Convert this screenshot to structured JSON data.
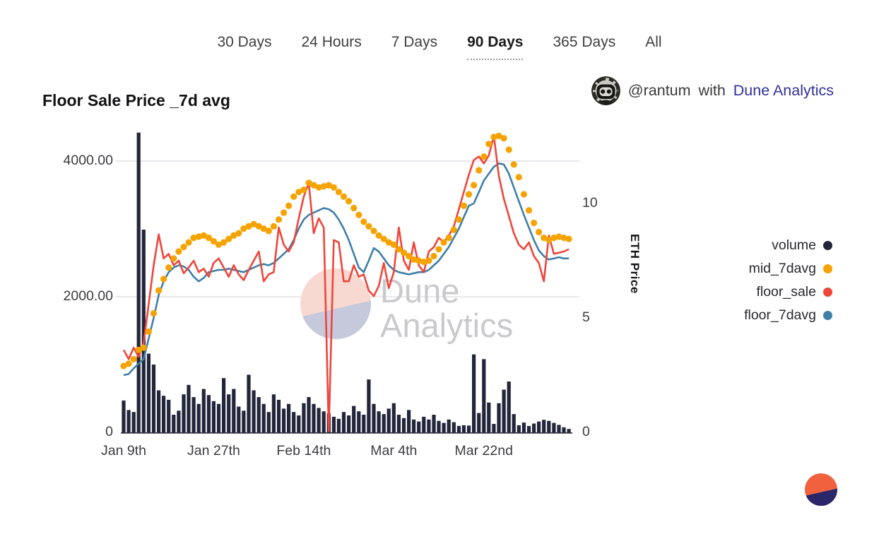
{
  "tabs": {
    "items": [
      {
        "label": "30 Days",
        "active": false
      },
      {
        "label": "24 Hours",
        "active": false
      },
      {
        "label": "7 Days",
        "active": false
      },
      {
        "label": "90 Days",
        "active": true
      },
      {
        "label": "365 Days",
        "active": false
      },
      {
        "label": "All",
        "active": false
      }
    ]
  },
  "header": {
    "title": "Floor Sale Price _7d avg",
    "author_handle": "@rantum",
    "connector": "with",
    "brand": "Dune Analytics"
  },
  "watermark": {
    "line1": "Dune",
    "line2": "Analytics"
  },
  "chart_data": {
    "type": "composed",
    "title": "Floor Sale Price _7d avg",
    "x_axis": {
      "labels": [
        "Jan 9th",
        "Jan 27th",
        "Feb 14th",
        "Mar 4th",
        "Mar 22nd"
      ],
      "label_day_index": [
        0,
        18,
        36,
        54,
        72
      ],
      "days_total": 90
    },
    "left_axis": {
      "ticks": [
        "4000.00",
        "2000.00",
        "0"
      ],
      "tick_values": [
        4000,
        2000,
        0
      ],
      "max": 4500
    },
    "right_axis": {
      "title": "ETH Price",
      "ticks": [
        "10",
        "5",
        "0"
      ],
      "tick_values": [
        10,
        5,
        0
      ],
      "max": 13.2
    },
    "grid": "horizontal-only",
    "legend_position": "right-outside",
    "series": [
      {
        "name": "volume",
        "type": "bar",
        "axis": "left",
        "color": "#23253a",
        "values": [
          470,
          330,
          300,
          4420,
          2990,
          1160,
          1000,
          620,
          540,
          480,
          260,
          320,
          560,
          700,
          520,
          420,
          640,
          550,
          460,
          420,
          800,
          560,
          640,
          380,
          320,
          850,
          620,
          520,
          420,
          300,
          560,
          480,
          350,
          420,
          300,
          250,
          430,
          520,
          420,
          360,
          310,
          280,
          230,
          200,
          300,
          250,
          390,
          310,
          260,
          780,
          420,
          310,
          270,
          350,
          430,
          260,
          210,
          330,
          190,
          160,
          230,
          190,
          260,
          170,
          140,
          190,
          150,
          95,
          105,
          100,
          1150,
          285,
          1080,
          440,
          125,
          430,
          630,
          750,
          270,
          105,
          145,
          95,
          130,
          160,
          185,
          170,
          140,
          110,
          75,
          50
        ]
      },
      {
        "name": "mid_7davg",
        "type": "dotted-line",
        "axis": "right",
        "color": "#F5A300",
        "values": [
          2.9,
          3.0,
          3.2,
          3.6,
          3.7,
          4.4,
          5.2,
          6.2,
          6.7,
          7.2,
          7.6,
          7.9,
          8.1,
          8.3,
          8.5,
          8.55,
          8.6,
          8.5,
          8.35,
          8.2,
          8.3,
          8.45,
          8.6,
          8.7,
          8.9,
          9.0,
          9.1,
          9.0,
          8.9,
          8.8,
          9.0,
          9.3,
          9.6,
          9.9,
          10.3,
          10.5,
          10.6,
          10.9,
          10.8,
          10.7,
          10.75,
          10.8,
          10.7,
          10.5,
          10.3,
          10.1,
          9.8,
          9.5,
          9.2,
          9.0,
          8.8,
          8.6,
          8.45,
          8.3,
          8.2,
          8.0,
          7.85,
          7.7,
          7.55,
          7.5,
          7.45,
          7.5,
          7.7,
          8.0,
          8.3,
          8.5,
          8.85,
          9.3,
          9.9,
          10.4,
          10.8,
          11.45,
          12.05,
          12.6,
          12.9,
          12.95,
          12.85,
          12.35,
          11.7,
          11.15,
          10.4,
          9.7,
          9.15,
          8.75,
          8.5,
          8.4,
          8.5,
          8.55,
          8.5,
          8.45
        ]
      },
      {
        "name": "floor_sale",
        "type": "line",
        "axis": "right",
        "color": "#EF453B",
        "values": [
          3.6,
          3.2,
          3.7,
          3.3,
          3.9,
          5.6,
          7.3,
          8.65,
          7.6,
          7.8,
          7.3,
          7.5,
          6.95,
          7.2,
          7.5,
          7.0,
          7.15,
          6.8,
          7.4,
          7.6,
          7.2,
          6.8,
          7.3,
          6.9,
          6.65,
          7.1,
          7.5,
          7.9,
          6.6,
          6.9,
          7.0,
          8.95,
          8.2,
          7.9,
          8.3,
          9.35,
          10.3,
          10.9,
          8.7,
          9.35,
          8.95,
          0.05,
          8.4,
          8.3,
          6.6,
          6.6,
          7.3,
          6.8,
          6.9,
          6.2,
          5.95,
          6.4,
          7.4,
          6.3,
          7.0,
          8.95,
          7.5,
          7.1,
          8.3,
          7.3,
          7.0,
          7.9,
          8.1,
          8.5,
          8.3,
          8.6,
          9.0,
          9.75,
          10.5,
          11.25,
          11.9,
          12.05,
          11.75,
          12.1,
          12.95,
          11.2,
          10.2,
          9.45,
          8.7,
          8.2,
          8.0,
          8.3,
          7.7,
          7.4,
          6.6,
          8.6,
          7.8,
          7.85,
          7.9,
          8.0
        ]
      },
      {
        "name": "floor_7davg",
        "type": "line",
        "axis": "right",
        "color": "#3F7FA6",
        "values": [
          2.5,
          2.55,
          2.8,
          3.0,
          3.2,
          4.1,
          5.0,
          6.0,
          6.6,
          7.0,
          7.2,
          7.3,
          7.25,
          7.1,
          6.8,
          6.6,
          6.75,
          7.0,
          7.05,
          7.1,
          7.1,
          7.15,
          7.1,
          7.05,
          7.0,
          7.1,
          7.2,
          7.3,
          7.35,
          7.3,
          7.4,
          7.6,
          7.8,
          8.0,
          8.4,
          8.9,
          9.3,
          9.5,
          9.6,
          9.7,
          9.8,
          9.75,
          9.6,
          9.3,
          8.9,
          8.4,
          7.8,
          7.2,
          7.0,
          7.5,
          8.05,
          7.9,
          7.6,
          7.3,
          7.1,
          7.0,
          6.95,
          6.9,
          6.95,
          7.0,
          7.0,
          7.1,
          7.3,
          7.5,
          7.8,
          8.1,
          8.5,
          8.9,
          9.4,
          9.9,
          10.0,
          10.5,
          11.0,
          11.3,
          11.6,
          11.75,
          11.7,
          11.3,
          10.7,
          10.1,
          9.5,
          8.95,
          8.4,
          7.95,
          7.7,
          7.55,
          7.6,
          7.65,
          7.6,
          7.6
        ]
      }
    ],
    "colors": {
      "gridline": "#e9e9eb",
      "baseline": "#2a2c3a",
      "watermark_pink": "#f8d9d1",
      "watermark_lavender": "#c6c9db",
      "watermark_text": "#cacace",
      "logo_orange": "#f2613d",
      "logo_navy": "#29276a"
    }
  }
}
